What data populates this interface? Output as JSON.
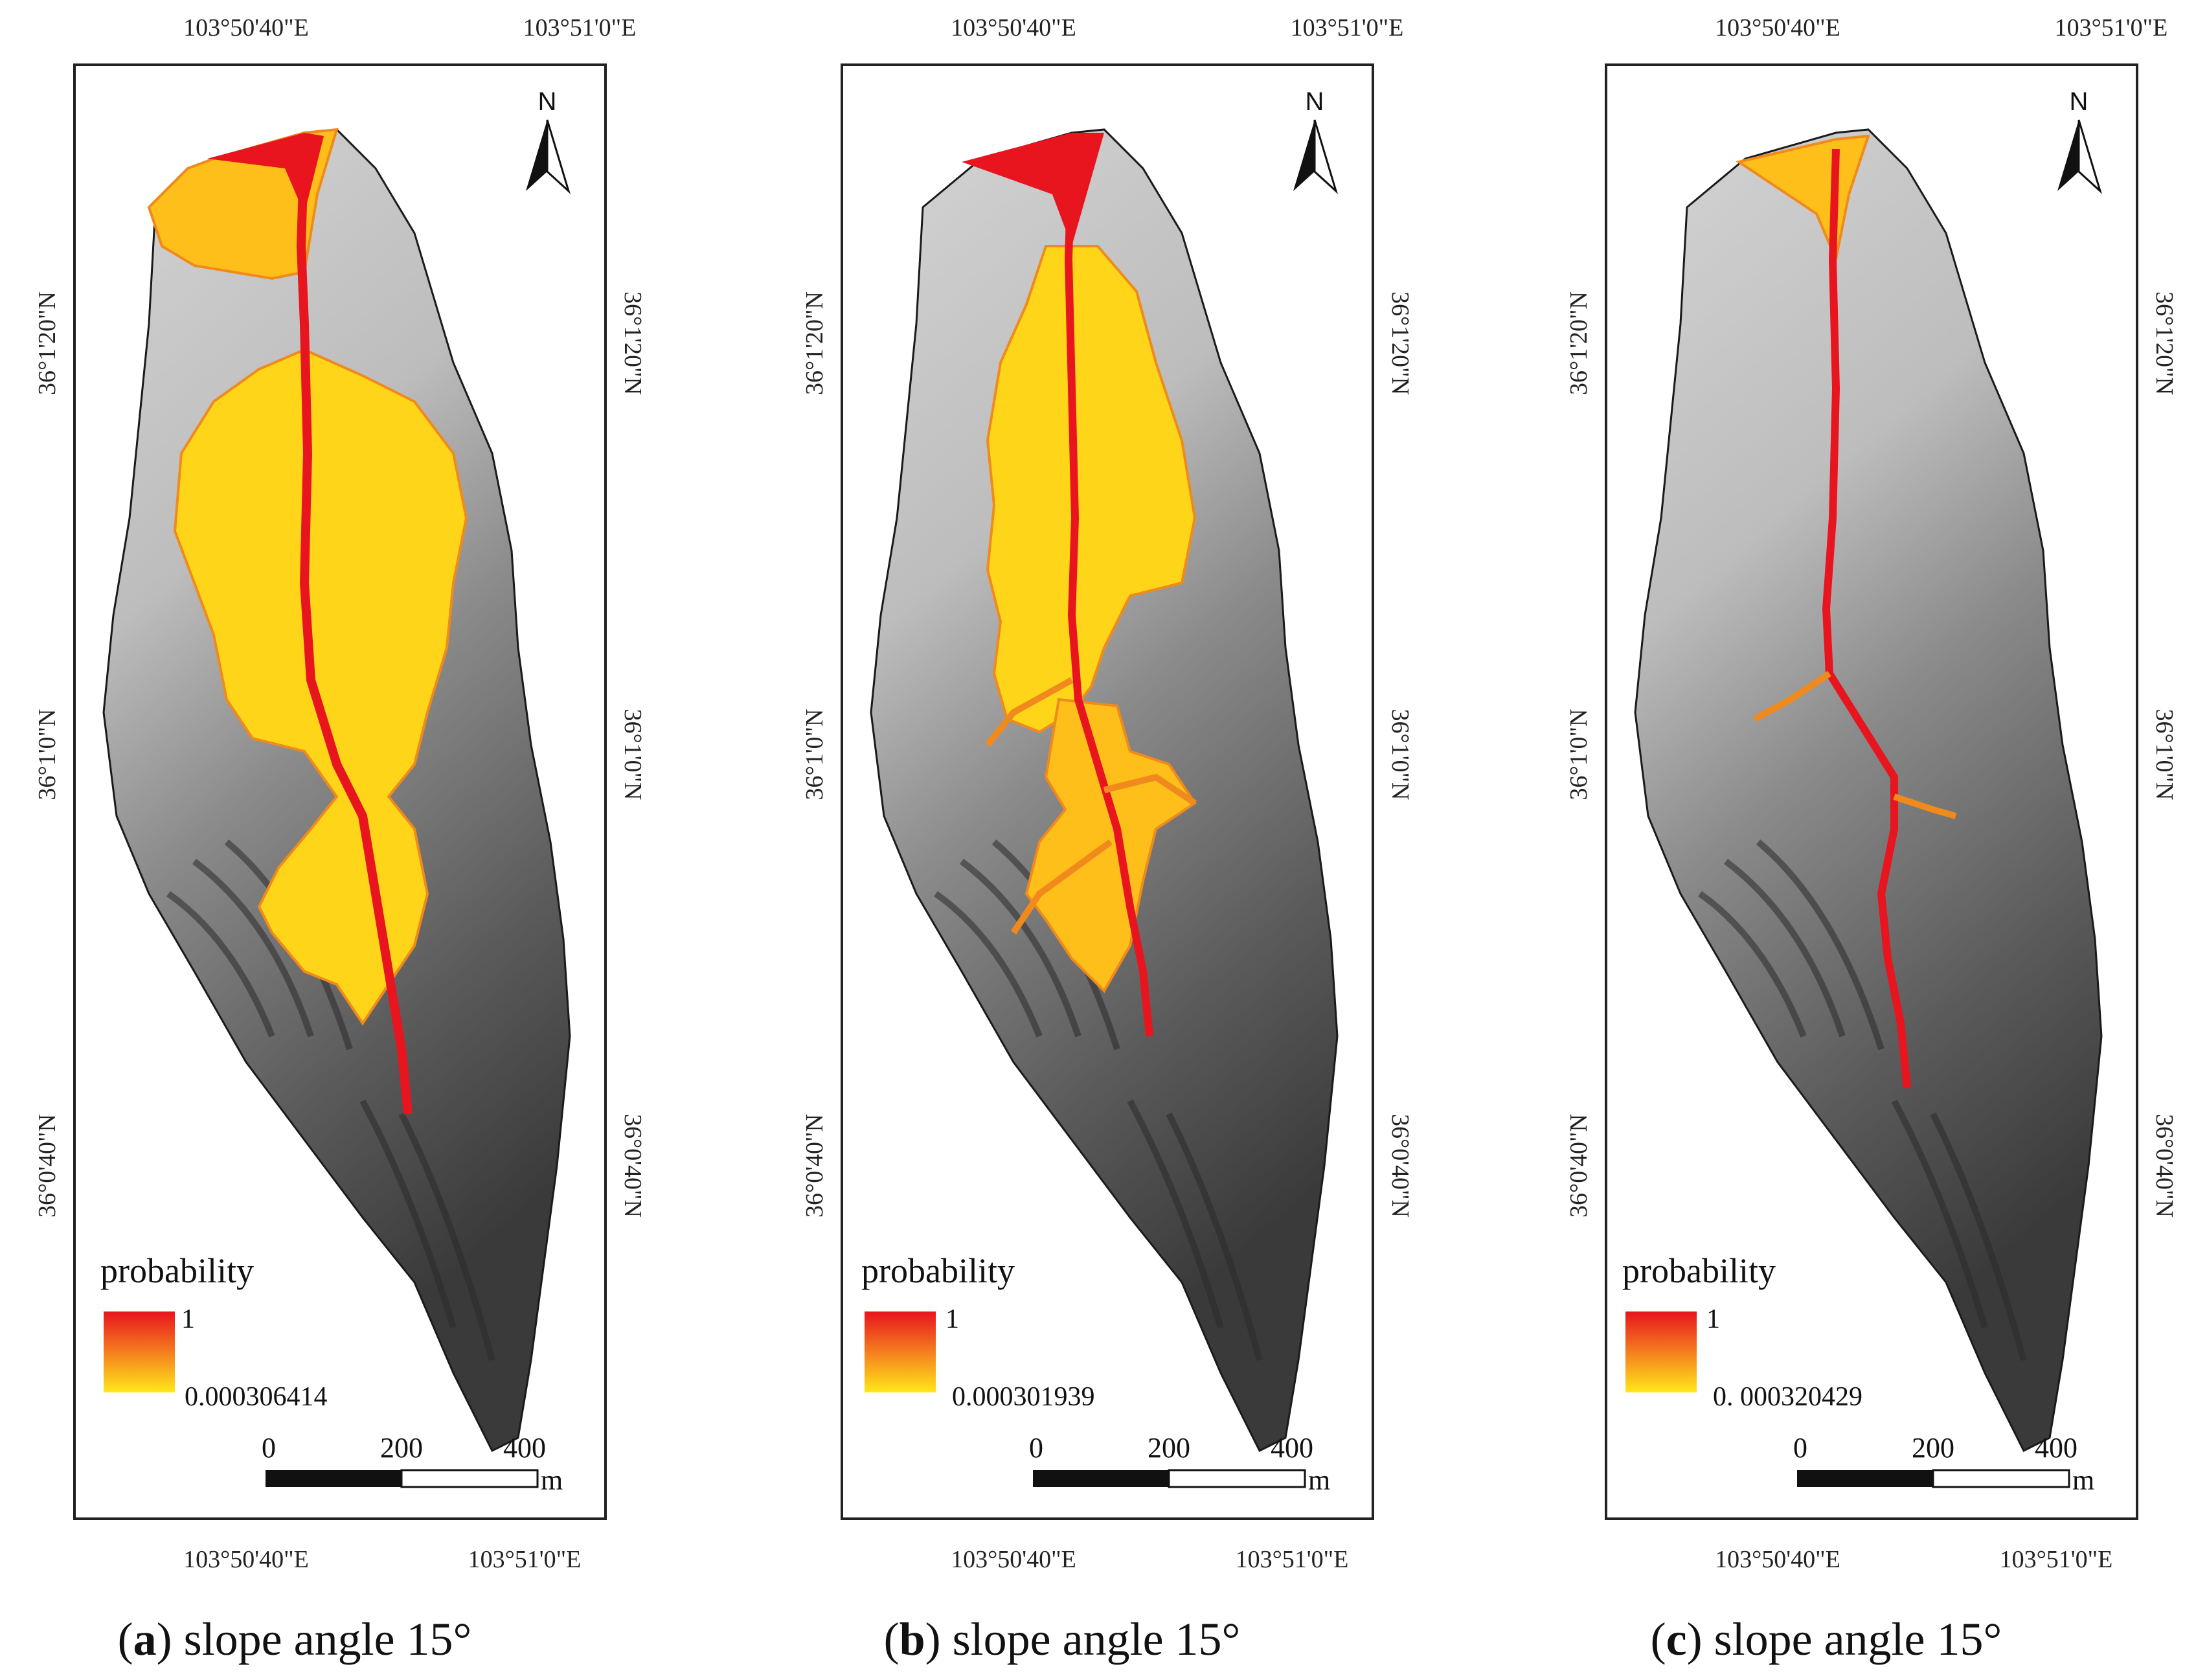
{
  "colors": {
    "prob_high": "#e8141e",
    "prob_mid": "#f47e1e",
    "prob_low": "#ffe81a",
    "terrain_dark": "#2b2b2b",
    "terrain_light": "#f2f2f2"
  },
  "panels": [
    {
      "letter": "a",
      "caption": "slope angle 15°",
      "legend_title": "probability",
      "legend_max": "1",
      "legend_min": "0.000306414",
      "lon_left": "103°50'40\"E",
      "lon_right": "103°51'0\"E",
      "lat_top": "36°1'20\"N",
      "lat_mid": "36°1'0\"N",
      "lat_bottom": "36°0'40\"N",
      "scale_0": "0",
      "scale_1": "200",
      "scale_2": "400",
      "scale_unit": "m",
      "north": "N"
    },
    {
      "letter": "b",
      "caption": "slope angle 15°",
      "legend_title": "probability",
      "legend_max": "1",
      "legend_min": "0.000301939",
      "lon_left": "103°50'40\"E",
      "lon_right": "103°51'0\"E",
      "lat_top": "36°1'20\"N",
      "lat_mid": "36°1'0\"N",
      "lat_bottom": "36°0'40\"N",
      "scale_0": "0",
      "scale_1": "200",
      "scale_2": "400",
      "scale_unit": "m",
      "north": "N"
    },
    {
      "letter": "c",
      "caption": "slope angle 15°",
      "legend_title": "probability",
      "legend_max": "1",
      "legend_min": "0. 000320429",
      "lon_left": "103°50'40\"E",
      "lon_right": "103°51'0\"E",
      "lat_top": "36°1'20\"N",
      "lat_mid": "36°1'0\"N",
      "lat_bottom": "36°0'40\"N",
      "scale_0": "0",
      "scale_1": "200",
      "scale_2": "400",
      "scale_unit": "m",
      "north": "N"
    }
  ]
}
